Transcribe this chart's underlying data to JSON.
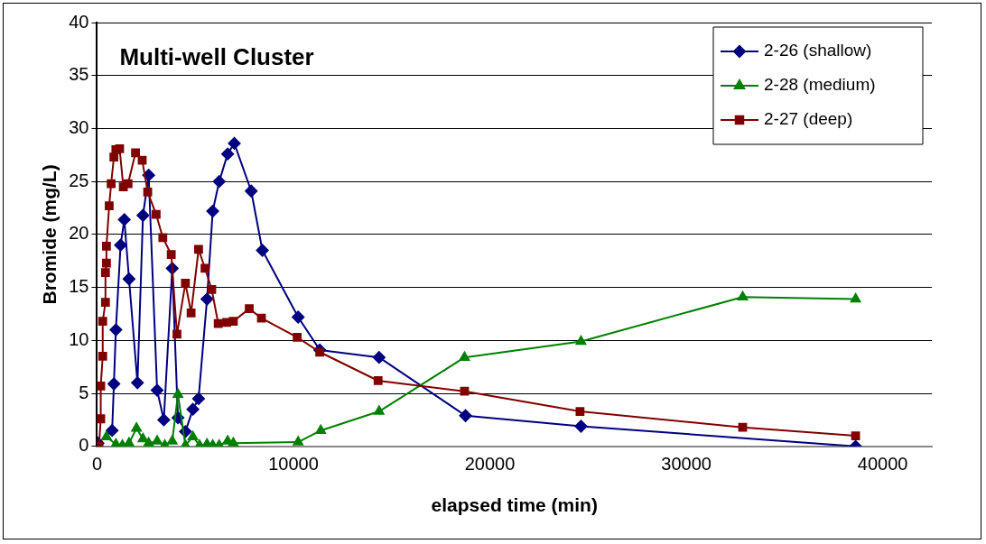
{
  "chart_data": {
    "type": "line",
    "title": "Multi-well Cluster",
    "xlabel": "elapsed time (min)",
    "ylabel": "Bromide (mg/L)",
    "xlim": [
      0,
      42500
    ],
    "xticks": [
      0,
      10000,
      20000,
      30000,
      40000
    ],
    "ylim": [
      0,
      40
    ],
    "yticks": [
      0,
      5,
      10,
      15,
      20,
      25,
      30,
      35,
      40
    ],
    "grid": "y",
    "legend": "top right",
    "line_style": "solid",
    "series": [
      {
        "name": "2-26 (shallow)",
        "color": "#000080",
        "marker": "diamond",
        "x": [
          50,
          770,
          860,
          960,
          1200,
          1390,
          1630,
          2060,
          2340,
          2630,
          3060,
          3400,
          3830,
          4120,
          4500,
          4880,
          5170,
          5600,
          5890,
          6220,
          6650,
          6990,
          7850,
          8420,
          10240,
          11340,
          14360,
          18760,
          24640,
          38620
        ],
        "values": [
          0.3,
          1.5,
          5.9,
          11,
          19,
          21.4,
          15.8,
          6,
          21.8,
          25.6,
          5.3,
          2.5,
          16.8,
          2.7,
          1.4,
          3.5,
          4.5,
          13.9,
          22.2,
          25,
          27.6,
          28.6,
          24.1,
          18.5,
          12.2,
          9.1,
          8.4,
          2.9,
          1.9,
          0
        ]
      },
      {
        "name": "2-28 (medium)",
        "color": "#008000",
        "marker": "triangle",
        "x": [
          480,
          960,
          1290,
          1630,
          2010,
          2340,
          2630,
          3060,
          3450,
          3830,
          4120,
          4500,
          4880,
          5220,
          5600,
          5890,
          6220,
          6650,
          6940,
          10240,
          11390,
          14360,
          18710,
          24640,
          32870,
          38620
        ],
        "values": [
          0.9,
          0.2,
          0.1,
          0.3,
          1.7,
          0.7,
          0.3,
          0.5,
          0.1,
          0.5,
          4.9,
          0.1,
          0.9,
          0.1,
          0.2,
          0.1,
          0.1,
          0.5,
          0.3,
          0.4,
          1.5,
          3.3,
          8.4,
          9.9,
          14.1,
          13.9
        ]
      },
      {
        "name": "2-27 (deep)",
        "color": "#800000",
        "marker": "square",
        "x": [
          100,
          190,
          190,
          290,
          290,
          430,
          430,
          480,
          480,
          620,
          720,
          860,
          960,
          1150,
          1340,
          1580,
          1960,
          2300,
          2580,
          3010,
          3350,
          3780,
          4070,
          4500,
          4790,
          5170,
          5500,
          5840,
          6170,
          6600,
          6940,
          7750,
          8370,
          10190,
          11340,
          14310,
          18710,
          24590,
          32870,
          38620
        ],
        "values": [
          0,
          2.6,
          5.7,
          8.5,
          11.8,
          13.6,
          16.4,
          17.3,
          18.9,
          22.7,
          24.8,
          27.3,
          28,
          28.1,
          24.5,
          24.8,
          27.7,
          27,
          24,
          21.9,
          19.7,
          18.1,
          10.6,
          15.4,
          12.6,
          18.6,
          16.8,
          14.8,
          11.6,
          11.7,
          11.8,
          13,
          12.1,
          10.3,
          8.9,
          6.2,
          5.2,
          3.3,
          1.8,
          1
        ]
      }
    ]
  }
}
